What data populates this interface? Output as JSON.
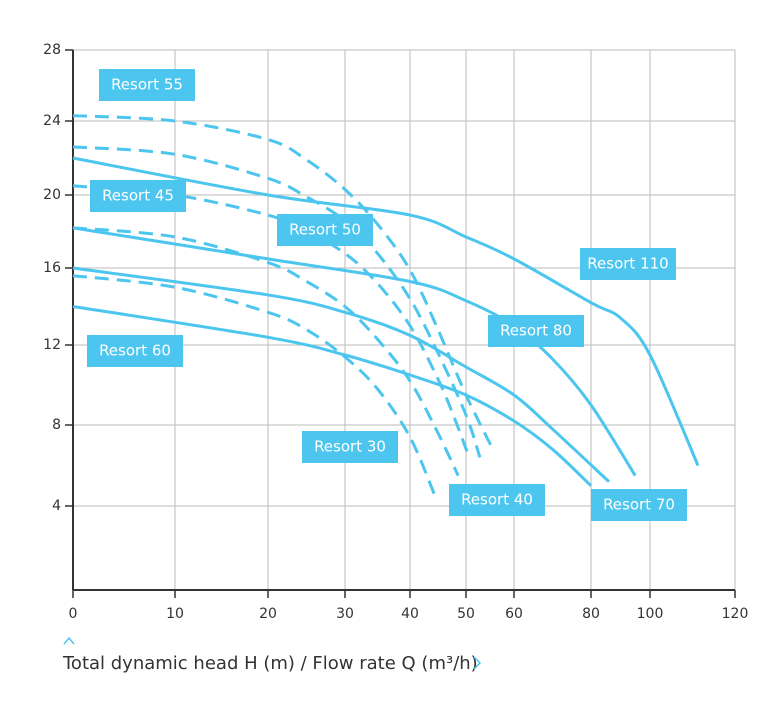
{
  "chart_data": {
    "type": "line",
    "xlabel": "Total dynamic head H (m) / Flow rate Q (m³/h)",
    "xlim": [
      0,
      120
    ],
    "xticks": [
      0,
      10,
      20,
      30,
      40,
      50,
      60,
      80,
      100,
      120
    ],
    "ylim": [
      0,
      28
    ],
    "yticks": [
      4,
      8,
      12,
      16,
      20,
      24,
      28
    ],
    "grid": true,
    "series": [
      {
        "name": "Resort 110",
        "color": "#4cc6ee",
        "dashed": false,
        "x": [
          0,
          20,
          40,
          50,
          60,
          80,
          90,
          100,
          111.3
        ],
        "values": [
          22.0,
          20.0,
          18.9,
          17.7,
          16.5,
          14.2,
          13.4,
          11.5,
          6.0
        ]
      },
      {
        "name": "Resort 80",
        "color": "#4cc6ee",
        "dashed": false,
        "x": [
          0,
          20,
          40,
          50,
          60,
          70,
          80,
          95
        ],
        "values": [
          18.2,
          16.5,
          15.3,
          14.3,
          13.0,
          11.3,
          9.0,
          5.5
        ]
      },
      {
        "name": "Resort 70",
        "color": "#4cc6ee",
        "dashed": false,
        "x": [
          0,
          20,
          30,
          40,
          50,
          60,
          70,
          86.1
        ],
        "values": [
          16.0,
          14.6,
          13.7,
          12.5,
          10.9,
          9.5,
          7.8,
          5.2
        ]
      },
      {
        "name": "Resort 60",
        "color": "#4cc6ee",
        "dashed": false,
        "x": [
          0,
          20,
          30,
          40,
          50,
          60,
          70,
          80
        ],
        "values": [
          14.0,
          12.4,
          11.5,
          10.5,
          9.5,
          8.2,
          6.8,
          5.0
        ]
      },
      {
        "name": "Resort 55",
        "color": "#4cc6ee",
        "dashed": true,
        "x": [
          0,
          10,
          20,
          25,
          30,
          35,
          40,
          45,
          50,
          55.6
        ],
        "values": [
          24.3,
          24.0,
          23.0,
          21.9,
          20.3,
          18.4,
          15.9,
          12.8,
          9.5,
          6.8
        ]
      },
      {
        "name": "Resort 50",
        "color": "#4cc6ee",
        "dashed": true,
        "x": [
          0,
          10,
          20,
          25,
          30,
          35,
          40,
          45,
          50,
          52.9
        ],
        "values": [
          22.6,
          22.2,
          20.9,
          19.9,
          18.6,
          16.8,
          14.4,
          11.6,
          8.5,
          6.4
        ]
      },
      {
        "name": "Resort 45",
        "color": "#4cc6ee",
        "dashed": true,
        "x": [
          0,
          10,
          20,
          25,
          30,
          35,
          40,
          45,
          48,
          50.5
        ],
        "values": [
          20.5,
          20.0,
          18.9,
          18.0,
          16.8,
          15.2,
          13.0,
          10.3,
          8.3,
          6.5
        ]
      },
      {
        "name": "Resort 40",
        "color": "#4cc6ee",
        "dashed": true,
        "x": [
          0,
          10,
          20,
          25,
          30,
          35,
          40,
          45,
          48.6
        ],
        "values": [
          18.2,
          17.7,
          16.3,
          15.3,
          14.0,
          12.3,
          10.2,
          7.6,
          5.5
        ]
      },
      {
        "name": "Resort 30",
        "color": "#4cc6ee",
        "dashed": true,
        "x": [
          0,
          10,
          20,
          25,
          30,
          35,
          40,
          44.6
        ],
        "values": [
          15.6,
          15.0,
          13.7,
          12.8,
          11.4,
          9.8,
          7.4,
          4.4
        ]
      }
    ]
  }
}
